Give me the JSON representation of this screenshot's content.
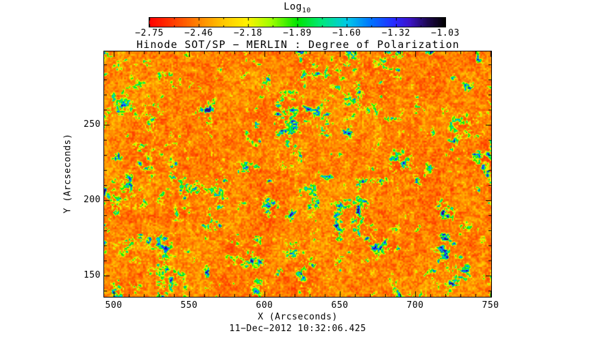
{
  "title": "Hinode SOT/SP − MERLIN : Degree of Polarization",
  "colorbar": {
    "title": "Log",
    "title_sub": "10",
    "tick_labels": [
      "−2.75",
      "−2.46",
      "−2.18",
      "−1.89",
      "−1.60",
      "−1.32",
      "−1.03"
    ]
  },
  "xaxis": {
    "label": "X (Arcseconds)",
    "ticks": [
      500,
      550,
      600,
      650,
      700,
      750
    ],
    "tick_labels": [
      "500",
      "550",
      "600",
      "650",
      "700",
      "750"
    ],
    "minor_step": 10,
    "range": [
      493.6,
      750.4
    ]
  },
  "yaxis": {
    "label": "Y (Arcseconds)",
    "ticks": [
      150,
      200,
      250
    ],
    "tick_labels": [
      "150",
      "200",
      "250"
    ],
    "minor_step": 10,
    "range": [
      135.5,
      298.5
    ]
  },
  "footer": {
    "date": "11−Dec−2012 10:32:06.425"
  },
  "chart_data": {
    "type": "heatmap",
    "title": "Hinode SOT/SP − MERLIN : Degree of Polarization",
    "xlabel": "X (Arcseconds)",
    "ylabel": "Y (Arcseconds)",
    "x_range": [
      493.6,
      750.4
    ],
    "x_ticks": [
      500,
      550,
      600,
      650,
      700,
      750
    ],
    "y_range": [
      135.5,
      298.5
    ],
    "y_ticks": [
      150,
      200,
      250
    ],
    "grid": false,
    "legend_position": "top-colorbar",
    "colorbar": {
      "title": "Log10",
      "range": [
        -2.75,
        -1.03
      ],
      "ticks": [
        -2.75,
        -2.46,
        -2.18,
        -1.89,
        -1.6,
        -1.32,
        -1.03
      ]
    },
    "date_annotation": "11-Dec-2012 10:32:06.425",
    "value_summary": "Quiet-Sun log10 polarization degree: background mostly -2.75 to -2.3 (red/orange) with speckled -2.2 to -2.0 (yellow/green) and magnetic network patches reaching -1.6 to -1.2 (cyan/blue cores)",
    "colormap_stops": [
      [
        0.0,
        "#ff0000"
      ],
      [
        0.08,
        "#ff3c00"
      ],
      [
        0.17,
        "#ff8800"
      ],
      [
        0.25,
        "#ffc800"
      ],
      [
        0.33,
        "#fff200"
      ],
      [
        0.41,
        "#a0ff00"
      ],
      [
        0.5,
        "#00e400"
      ],
      [
        0.58,
        "#00e878"
      ],
      [
        0.67,
        "#00c8e8"
      ],
      [
        0.75,
        "#0072ff"
      ],
      [
        0.83,
        "#2828ff"
      ],
      [
        0.88,
        "#3c14c8"
      ],
      [
        0.94,
        "#1e0850"
      ],
      [
        1.0,
        "#000000"
      ]
    ],
    "noise_seed": 1234567
  }
}
